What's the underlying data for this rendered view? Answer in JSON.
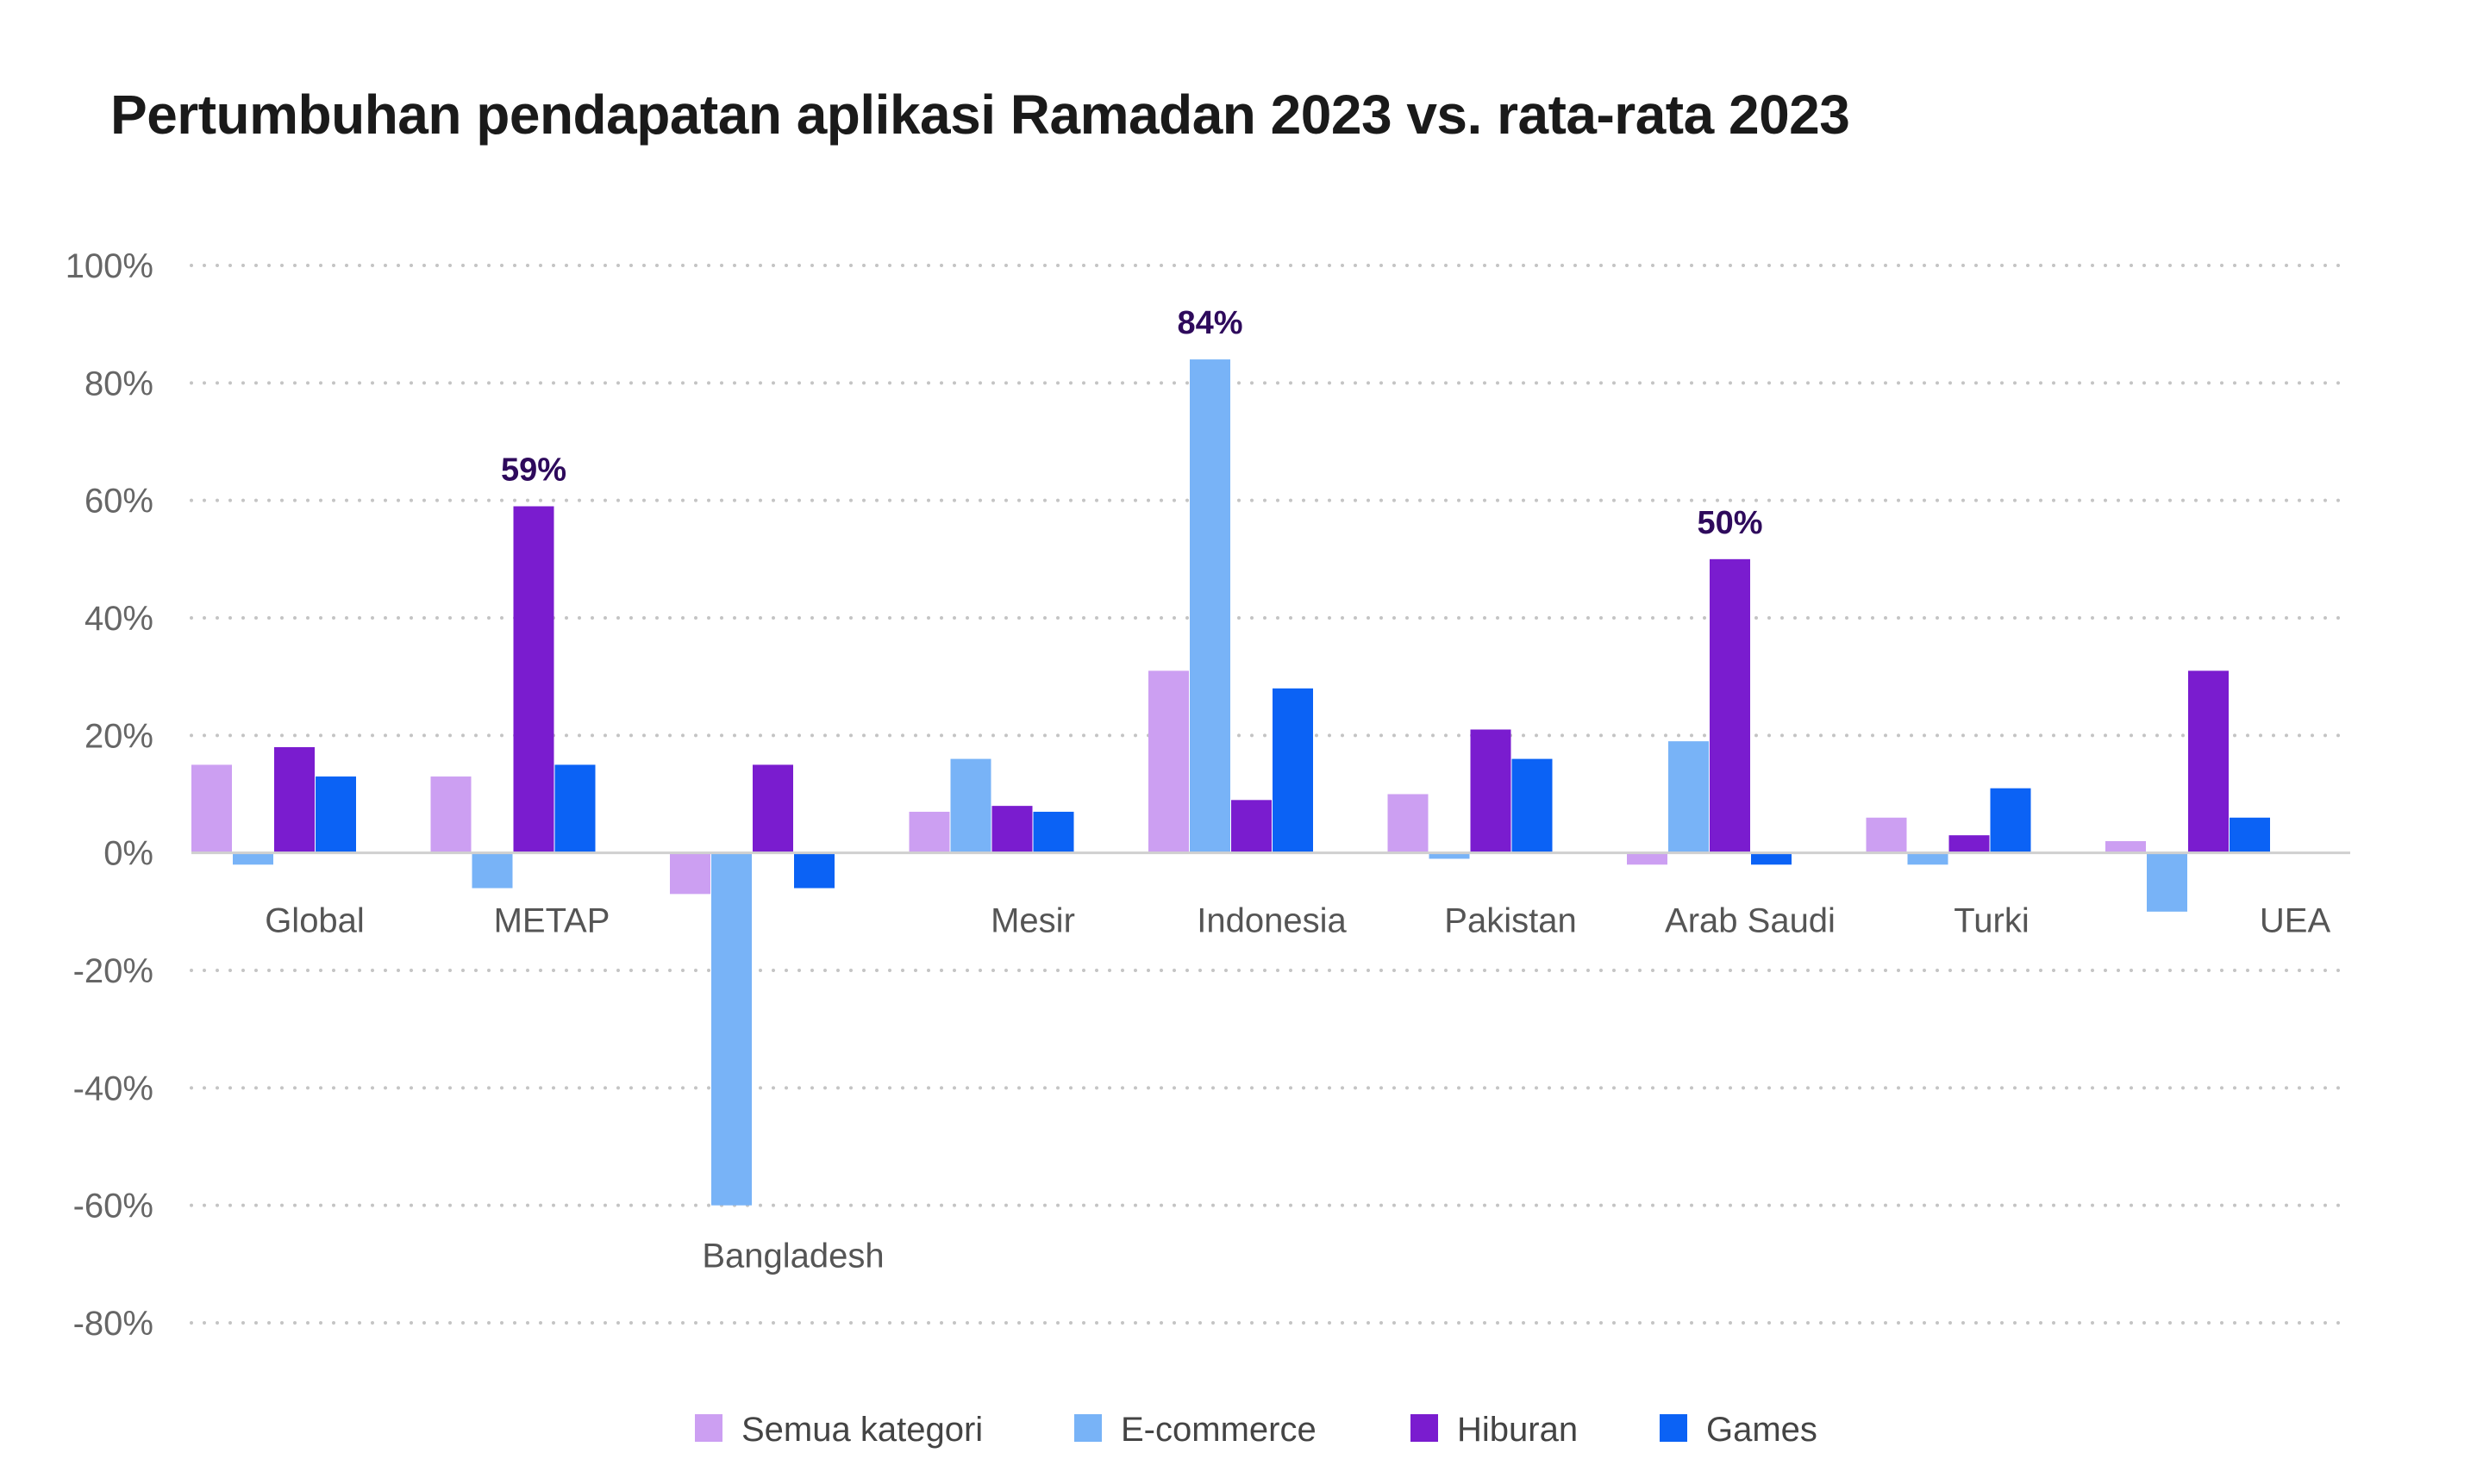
{
  "chart_data": {
    "type": "bar",
    "title": "Pertumbuhan pendapatan aplikasi Ramadan 2023 vs. rata-rata 2023",
    "xlabel": "",
    "ylabel": "",
    "ylim": [
      -80,
      100
    ],
    "yticks": [
      100,
      80,
      60,
      40,
      20,
      0,
      -20,
      -40,
      -60,
      -80
    ],
    "ytick_labels": [
      "100%",
      "80%",
      "60%",
      "40%",
      "20%",
      "0%",
      "-20%",
      "-40%",
      "-60%",
      "-80%"
    ],
    "grid": true,
    "categories": [
      "Global",
      "METAP",
      "Bangladesh",
      "Mesir",
      "Indonesia",
      "Pakistan",
      "Arab Saudi",
      "Turki",
      "UEA"
    ],
    "series": [
      {
        "name": "Semua kategori",
        "color": "#cc9ff2",
        "values": [
          15,
          13,
          -7,
          7,
          31,
          10,
          -2,
          6,
          2
        ]
      },
      {
        "name": "E-commerce",
        "color": "#78b3f7",
        "values": [
          -2,
          -6,
          -60,
          16,
          84,
          -1,
          19,
          -2,
          -10
        ]
      },
      {
        "name": "Hiburan",
        "color": "#7a1ccf",
        "values": [
          18,
          59,
          15,
          8,
          9,
          21,
          50,
          3,
          31
        ]
      },
      {
        "name": "Games",
        "color": "#0b62f5",
        "values": [
          13,
          15,
          -6,
          7,
          28,
          16,
          -2,
          11,
          6
        ]
      }
    ],
    "annotations": [
      {
        "category": "METAP",
        "series": "Hiburan",
        "text": "59%",
        "color": "#2e0a5c"
      },
      {
        "category": "Indonesia",
        "series": "E-commerce",
        "text": "84%",
        "color": "#2e0a5c"
      },
      {
        "category": "Arab Saudi",
        "series": "Hiburan",
        "text": "50%",
        "color": "#2e0a5c"
      }
    ],
    "legend_position": "bottom-center"
  }
}
